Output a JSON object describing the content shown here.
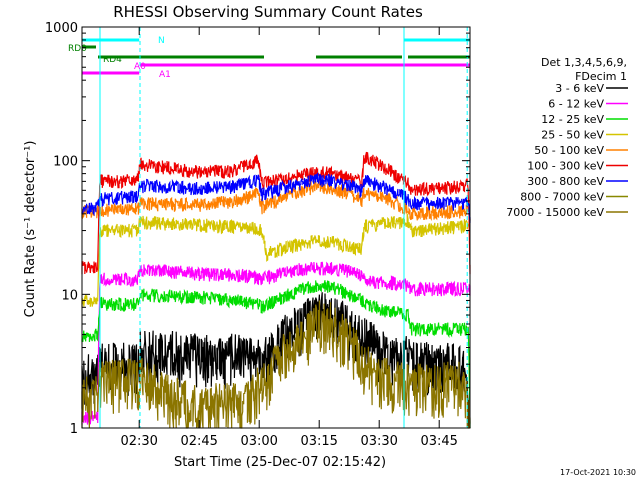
{
  "chart_data": {
    "type": "line",
    "title": "RHESSI Observing Summary Count Rates",
    "xlabel": "Start Time (25-Dec-07 02:15:42)",
    "ylabel": "Count Rate (s⁻¹ detector⁻¹)",
    "y_scale": "log",
    "ylim": [
      1,
      1000
    ],
    "y_ticks": [
      "1",
      "10",
      "100",
      "1000"
    ],
    "x_ticks": [
      "02:30",
      "02:45",
      "03:00",
      "03:15",
      "03:30",
      "03:45"
    ],
    "x_tick_minutes": [
      14.3,
      29.3,
      44.3,
      59.3,
      74.3,
      89.3
    ],
    "xlim_minutes": [
      0,
      97
    ],
    "grid": false,
    "legend_header": [
      "Det 1,3,4,5,6,9,",
      "FDecim 1"
    ],
    "legend_position": "right",
    "series": [
      {
        "name": "3 - 6 keV",
        "color": "#000000",
        "x": [
          0,
          4,
          4.5,
          14,
          14.5,
          20,
          25,
          30,
          33,
          38,
          42,
          45,
          48,
          50,
          53,
          56,
          59,
          62,
          65,
          68,
          70,
          72,
          75,
          78,
          81,
          84,
          88,
          92,
          95,
          97
        ],
        "y": [
          2.5,
          2.5,
          3,
          3,
          3.8,
          3.8,
          3.6,
          3.5,
          3.5,
          3.5,
          3.4,
          3.3,
          3.8,
          4.6,
          5.5,
          6.5,
          7.3,
          7.2,
          6.3,
          5.2,
          4.8,
          4.4,
          3.7,
          3.4,
          3.4,
          3.1,
          3,
          3,
          3,
          1
        ]
      },
      {
        "name": "6 - 12 keV",
        "color": "#ff00ff",
        "x": [
          0,
          4,
          4.5,
          14,
          14.5,
          20,
          30,
          38,
          44,
          45,
          48,
          52,
          55,
          59,
          63,
          67,
          70,
          72,
          76,
          80,
          81.5,
          82,
          88,
          95,
          96.5,
          97
        ],
        "y": [
          1.2,
          1.2,
          13,
          13,
          15.2,
          15,
          14.2,
          14,
          13.5,
          13,
          13.8,
          14.8,
          15.5,
          15.8,
          15.5,
          14.8,
          14,
          12.6,
          12.3,
          12,
          11.8,
          11,
          11,
          11,
          11,
          11
        ]
      },
      {
        "name": "12 - 25 keV",
        "color": "#00dd00",
        "x": [
          0,
          4,
          4.5,
          14,
          14.5,
          20,
          30,
          38,
          44,
          45,
          50,
          55,
          59,
          63,
          67,
          70,
          72,
          76,
          80,
          81.5,
          82,
          88,
          95,
          96.5,
          97
        ],
        "y": [
          5,
          5,
          8.5,
          8.5,
          10,
          9.8,
          9.5,
          9,
          8.5,
          8,
          9.5,
          11,
          11.8,
          11.2,
          10,
          9,
          8.2,
          7.6,
          7.2,
          7,
          5.5,
          5.5,
          5.5,
          5.5,
          1
        ]
      },
      {
        "name": "25 - 50 keV",
        "color": "#d4c400",
        "x": [
          0,
          4,
          4.5,
          14,
          14.5,
          20,
          30,
          38,
          44,
          45,
          46,
          50,
          55,
          59,
          63,
          67,
          70,
          70.5,
          76,
          80,
          81.5,
          82,
          88,
          95,
          96.5,
          97
        ],
        "y": [
          9,
          9,
          30,
          30,
          35,
          34,
          33,
          32,
          31,
          30,
          20,
          22,
          24,
          25,
          24.5,
          23,
          22,
          32,
          34,
          35,
          36,
          30,
          31,
          32,
          34,
          34
        ]
      },
      {
        "name": "50 - 100 keV",
        "color": "#ff8000",
        "x": [
          0,
          4,
          4.5,
          14,
          14.5,
          20,
          30,
          38,
          42,
          44,
          45,
          50,
          55,
          59,
          63,
          67,
          70,
          70.5,
          76,
          80,
          81.5,
          82,
          88,
          95,
          96.5,
          97
        ],
        "y": [
          42,
          42,
          43,
          44,
          48,
          47,
          47,
          50,
          55,
          60,
          45,
          52,
          60,
          65,
          62,
          56,
          50,
          58,
          52,
          46,
          44,
          40,
          41,
          42,
          43,
          37
        ]
      },
      {
        "name": "100 - 300 keV",
        "color": "#ee0000",
        "x": [
          0,
          4,
          4.5,
          14,
          14.5,
          20,
          30,
          38,
          42,
          44,
          45,
          50,
          55,
          59,
          63,
          67,
          70,
          70.5,
          76,
          80,
          81.5,
          82,
          88,
          95,
          96.5,
          97
        ],
        "y": [
          16,
          16,
          70,
          72,
          95,
          90,
          82,
          85,
          93,
          105,
          68,
          72,
          78,
          82,
          80,
          74,
          68,
          108,
          88,
          72,
          68,
          60,
          62,
          64,
          66,
          15
        ]
      },
      {
        "name": "300 - 800 keV",
        "color": "#0000ff",
        "x": [
          0,
          4,
          4.5,
          14,
          14.5,
          20,
          30,
          38,
          42,
          44,
          45,
          50,
          55,
          59,
          63,
          67,
          70,
          70.5,
          76,
          80,
          81.5,
          82,
          88,
          95,
          96.5,
          97
        ],
        "y": [
          45,
          45,
          52,
          54,
          65,
          64,
          62,
          64,
          68,
          72,
          56,
          62,
          68,
          73,
          70,
          65,
          60,
          72,
          62,
          55,
          52,
          47,
          48,
          48,
          49,
          38
        ]
      },
      {
        "name": "800 - 7000 keV",
        "color": "#888800",
        "x": [],
        "y": []
      },
      {
        "name": "7000 - 15000 keV",
        "color": "#8b7500",
        "x": [
          0,
          4,
          4.5,
          14,
          14.5,
          20,
          25,
          30,
          33,
          38,
          42,
          45,
          48,
          50,
          53,
          56,
          59,
          62,
          65,
          68,
          70,
          72,
          75,
          78,
          81,
          84,
          88,
          92,
          95,
          97
        ],
        "y": [
          1.7,
          1.7,
          2.3,
          2.3,
          2.6,
          1.8,
          1.6,
          1.4,
          1.5,
          1.5,
          1.6,
          2.2,
          2.8,
          3.4,
          4.2,
          5,
          6.5,
          6.3,
          5,
          4,
          3.3,
          2.7,
          2.4,
          2.2,
          2.1,
          2.1,
          2.1,
          2.2,
          2.2,
          1
        ]
      }
    ],
    "annotations": {
      "bars": [
        {
          "label": "N",
          "color": "#00ffff",
          "segments": [
            [
              0,
              14.3
            ],
            [
              80.5,
              97
            ]
          ]
        },
        {
          "label": "RD0",
          "color": "#008000",
          "segments": [
            [
              0,
              3.5
            ]
          ]
        },
        {
          "label": "RD4",
          "color": "#008000",
          "segments": [
            [
              4,
              45.5
            ],
            [
              58.5,
              80
            ],
            [
              81.5,
              97
            ]
          ]
        },
        {
          "label": "A0",
          "color": "#ff00ff",
          "segments": [
            [
              14.5,
              97
            ]
          ]
        },
        {
          "label": "A1",
          "color": "#ff00ff",
          "segments": [
            [
              0,
              14.3
            ]
          ]
        }
      ],
      "vlines": [
        {
          "x": 4.5,
          "color": "#00ffff",
          "style": "solid"
        },
        {
          "x": 14.5,
          "color": "#00ffff",
          "style": "dashed"
        },
        {
          "x": 80.5,
          "color": "#00ffff",
          "style": "solid"
        },
        {
          "x": 96.3,
          "color": "#00ffff",
          "style": "dashed"
        }
      ]
    }
  },
  "footer": {
    "timestamp": "17-Oct-2021 10:30"
  }
}
